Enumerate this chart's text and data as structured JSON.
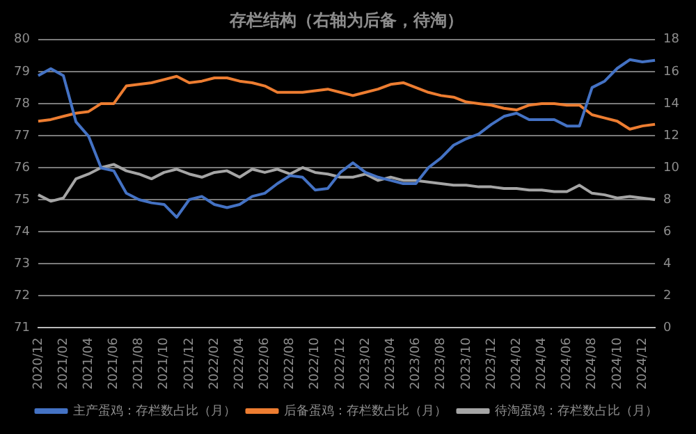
{
  "chart_data": {
    "type": "line",
    "title": "存栏结构（右轴为后备，待淘）",
    "categories": [
      "2020/12",
      null,
      "2021/02",
      null,
      "2021/04",
      null,
      "2021/06",
      null,
      "2021/08",
      null,
      "2021/10",
      null,
      "2021/12",
      null,
      "2022/02",
      null,
      "2022/04",
      null,
      "2022/06",
      null,
      "2022/08",
      null,
      "2022/10",
      null,
      "2022/12",
      null,
      "2023/02",
      null,
      "2023/04",
      null,
      "2023/06",
      null,
      "2023/08",
      null,
      "2023/10",
      null,
      "2023/12",
      null,
      "2024/02",
      null,
      "2024/04",
      null,
      "2024/06",
      null,
      "2024/08",
      null,
      "2024/10",
      null,
      "2024/12",
      null
    ],
    "series": [
      {
        "name": "主产蛋鸡：存栏数占比（月）",
        "color": "#4472c4",
        "values": [
          78.87,
          79.09,
          78.87,
          77.43,
          76.98,
          75.99,
          75.9,
          75.2,
          75.0,
          74.9,
          74.85,
          74.45,
          75.0,
          75.1,
          74.85,
          74.75,
          74.85,
          75.1,
          75.2,
          75.5,
          75.75,
          75.7,
          75.3,
          75.35,
          75.85,
          76.15,
          75.85,
          75.7,
          75.6,
          75.5,
          75.5,
          76.0,
          76.3,
          76.7,
          76.9,
          77.05,
          77.35,
          77.6,
          77.7,
          77.5,
          77.5,
          77.5,
          77.3,
          77.3,
          78.5,
          78.7,
          79.1,
          79.37,
          79.3,
          79.35
        ]
      },
      {
        "name": "后备蛋鸡：存栏数占比（月）",
        "color": "#ed7d31",
        "axis": "y2",
        "values": [
          12.9,
          13.0,
          13.2,
          13.4,
          13.5,
          14.0,
          14.0,
          15.1,
          15.2,
          15.3,
          15.5,
          15.7,
          15.3,
          15.4,
          15.6,
          15.6,
          15.4,
          15.3,
          15.1,
          14.7,
          14.7,
          14.7,
          14.8,
          14.9,
          14.7,
          14.5,
          14.7,
          14.9,
          15.2,
          15.3,
          15.0,
          14.7,
          14.5,
          14.4,
          14.1,
          14.0,
          13.9,
          13.7,
          13.6,
          13.9,
          14.0,
          14.0,
          13.9,
          13.9,
          13.3,
          13.1,
          12.9,
          12.4,
          12.6,
          12.7
        ]
      },
      {
        "name": "待淘蛋鸡：存栏数占比（月）",
        "color": "#a5a5a5",
        "axis": "y2",
        "values": [
          8.3,
          7.9,
          8.1,
          9.3,
          9.6,
          10.0,
          10.2,
          9.8,
          9.6,
          9.3,
          9.7,
          9.9,
          9.6,
          9.4,
          9.7,
          9.8,
          9.4,
          9.9,
          9.7,
          9.9,
          9.6,
          10.0,
          9.7,
          9.6,
          9.4,
          9.4,
          9.6,
          9.2,
          9.4,
          9.2,
          9.2,
          9.1,
          9.0,
          8.9,
          8.9,
          8.8,
          8.8,
          8.7,
          8.7,
          8.6,
          8.6,
          8.5,
          8.5,
          8.9,
          8.4,
          8.3,
          8.1,
          8.2,
          8.1,
          8.0
        ]
      }
    ],
    "ylim": [
      71,
      80
    ],
    "yticks": [
      71,
      72,
      73,
      74,
      75,
      76,
      77,
      78,
      79,
      80
    ],
    "y2lim": [
      0,
      18
    ],
    "y2ticks": [
      0,
      2,
      4,
      6,
      8,
      10,
      12,
      14,
      16,
      18
    ],
    "grid": "y",
    "legend": "bottom",
    "marker": "none",
    "line_style": "solid"
  }
}
